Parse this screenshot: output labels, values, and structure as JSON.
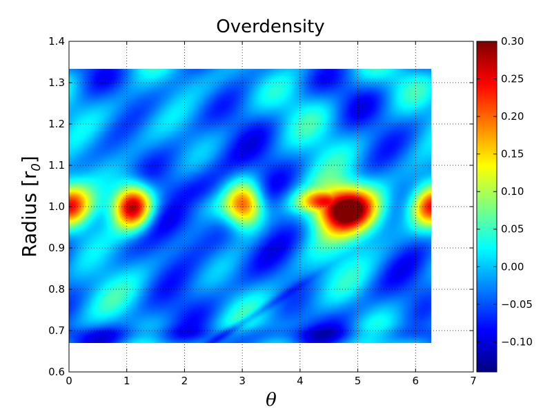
{
  "chart_data": {
    "type": "heatmap",
    "title": "Overdensity",
    "xlabel": "θ",
    "ylabel": "Radius  [r",
    "ylabel_sub": "0",
    "ylabel_close": "]",
    "xlim": [
      0,
      7
    ],
    "ylim": [
      0.6,
      1.4
    ],
    "x_ticks": [
      "0",
      "1",
      "2",
      "3",
      "4",
      "5",
      "6",
      "7"
    ],
    "y_ticks": [
      "0.6",
      "0.7",
      "0.8",
      "0.9",
      "1.0",
      "1.1",
      "1.2",
      "1.3",
      "1.4"
    ],
    "grid": true,
    "data_extent": {
      "x": [
        0,
        6.28
      ],
      "y": [
        0.67,
        1.33
      ]
    },
    "colormap": "jet",
    "colorbar": {
      "vmin": -0.14,
      "vmax": 0.3,
      "ticks": [
        -0.1,
        -0.05,
        0.0,
        0.05,
        0.1,
        0.15,
        0.2,
        0.25,
        0.3
      ],
      "tick_labels": [
        "−0.10",
        "−0.05",
        "0.00",
        "0.05",
        "0.10",
        "0.15",
        "0.20",
        "0.25",
        "0.30"
      ]
    },
    "features": [
      {
        "label": "clump",
        "theta": 1.1,
        "radius": 1.0,
        "peak": 0.3
      },
      {
        "label": "clump",
        "theta": 3.05,
        "radius": 1.0,
        "peak": 0.25
      },
      {
        "label": "clump",
        "theta": 4.85,
        "radius": 0.99,
        "peak": 0.3
      },
      {
        "label": "clump",
        "theta": 0.0,
        "radius": 1.0,
        "peak": 0.18
      },
      {
        "label": "clump",
        "theta": 6.28,
        "radius": 1.0,
        "peak": 0.18
      },
      {
        "label": "void",
        "theta": 2.2,
        "radius": 1.0,
        "peak": -0.12
      }
    ]
  }
}
